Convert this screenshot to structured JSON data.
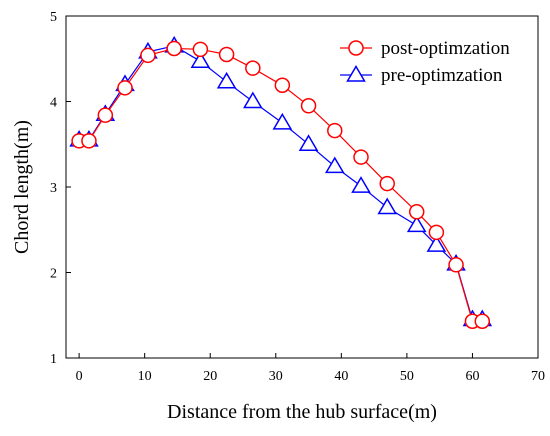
{
  "chart_data": {
    "type": "line",
    "xlabel": "Distance from the hub surface(m)",
    "ylabel": "Chord length(m)",
    "xlim": [
      -2,
      70
    ],
    "ylim": [
      1,
      5
    ],
    "xticks": [
      "0",
      "10",
      "20",
      "30",
      "40",
      "50",
      "60",
      "70"
    ],
    "yticks": [
      "1",
      "2",
      "3",
      "4",
      "5"
    ],
    "grid": false,
    "legend_position": "top-right",
    "series": [
      {
        "name": "post-optimzation",
        "marker": "circle",
        "color": "#ff0000",
        "x": [
          0,
          1.5,
          4,
          7,
          10.5,
          14.5,
          18.5,
          22.5,
          26.5,
          31,
          35,
          39,
          43,
          47,
          51.5,
          54.5,
          57.5,
          60,
          61.5
        ],
        "y": [
          3.54,
          3.54,
          3.84,
          4.16,
          4.54,
          4.62,
          4.61,
          4.55,
          4.39,
          4.19,
          3.95,
          3.66,
          3.35,
          3.04,
          2.71,
          2.47,
          2.09,
          1.43,
          1.43
        ]
      },
      {
        "name": "pre-optimzation",
        "marker": "triangle",
        "color": "#0000ff",
        "x": [
          0,
          1.5,
          4,
          7,
          10.5,
          14.5,
          18.5,
          22.5,
          26.5,
          31,
          35,
          39,
          43,
          47,
          51.5,
          54.5,
          57.5,
          60,
          61.5
        ],
        "y": [
          3.55,
          3.55,
          3.85,
          4.2,
          4.58,
          4.65,
          4.47,
          4.23,
          4.0,
          3.75,
          3.5,
          3.24,
          3.01,
          2.76,
          2.55,
          2.32,
          2.1,
          1.45,
          1.45
        ]
      }
    ]
  }
}
